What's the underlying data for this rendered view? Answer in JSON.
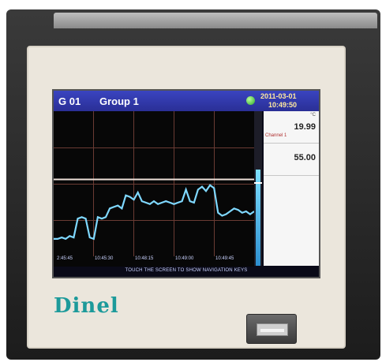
{
  "device": {
    "brand": "Dinel",
    "icons": {
      "status_led": "status-led-icon",
      "usb_port": "usb-port-icon"
    }
  },
  "screen": {
    "group_id": "G 01",
    "group_name": "Group 1",
    "date": "2011-03-01",
    "time": "10:49:50",
    "x_labels": [
      "2:45:45",
      "10:45:30",
      "10:48:15",
      "10:49:00",
      "10:49:45"
    ],
    "footer": "TOUCH THE SCREEN TO SHOW NAVIGATION KEYS",
    "values": [
      {
        "unit": "°C",
        "value": "19.99",
        "tag": "Channel 1"
      },
      {
        "unit": "",
        "value": "55.00",
        "tag": ""
      }
    ],
    "colors": {
      "title_bar": "#2f36aa",
      "trend": "#7fd8ff",
      "limit_line": "#ece0d8",
      "grid": "#6a3b33"
    }
  },
  "trend": {
    "level_fraction": 0.62,
    "limit_fraction": 0.53,
    "points": [
      0.12,
      0.12,
      0.13,
      0.12,
      0.14,
      0.13,
      0.26,
      0.27,
      0.26,
      0.13,
      0.12,
      0.27,
      0.26,
      0.27,
      0.33,
      0.34,
      0.35,
      0.33,
      0.42,
      0.41,
      0.39,
      0.44,
      0.38,
      0.37,
      0.36,
      0.38,
      0.36,
      0.37,
      0.38,
      0.37,
      0.36,
      0.37,
      0.38,
      0.46,
      0.38,
      0.37,
      0.46,
      0.48,
      0.45,
      0.49,
      0.47,
      0.3,
      0.28,
      0.29,
      0.31,
      0.33,
      0.32,
      0.3,
      0.31,
      0.29,
      0.31
    ]
  }
}
